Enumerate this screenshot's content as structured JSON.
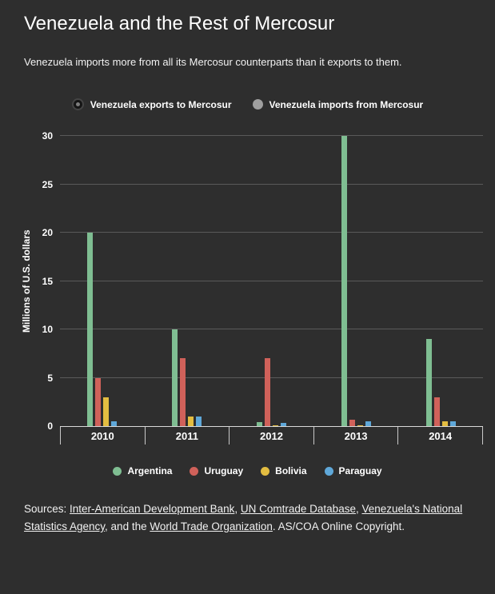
{
  "page": {
    "title": "Venezuela and the Rest of Mercosur",
    "subtitle": "Venezuela imports more from all its Mercosur counterparts than it exports to them."
  },
  "toggles": [
    {
      "id": "toggle-exports",
      "label": "Venezuela exports to Mercosur",
      "selected": true
    },
    {
      "id": "toggle-imports",
      "label": "Venezuela imports from Mercosur",
      "selected": false
    }
  ],
  "chart_data": {
    "type": "bar",
    "title": "Venezuela and the Rest of Mercosur",
    "xlabel": "",
    "ylabel": "Millions of U.S. dollars",
    "ylim": [
      0,
      30
    ],
    "yticks": [
      0,
      5,
      10,
      15,
      20,
      25,
      30
    ],
    "grid": true,
    "legend_position": "bottom",
    "categories": [
      "2010",
      "2011",
      "2012",
      "2013",
      "2014"
    ],
    "series": [
      {
        "name": "Argentina",
        "color": "#7fbe92",
        "values": [
          20,
          10,
          0.4,
          30,
          9
        ]
      },
      {
        "name": "Uruguay",
        "color": "#d0615a",
        "values": [
          5,
          7,
          7,
          0.7,
          3
        ]
      },
      {
        "name": "Bolivia",
        "color": "#e3bd41",
        "values": [
          3,
          1,
          0.1,
          0.1,
          0.5
        ]
      },
      {
        "name": "Paraguay",
        "color": "#5fa8d9",
        "values": [
          0.5,
          1,
          0.3,
          0.5,
          0.5
        ]
      }
    ]
  },
  "colors": {
    "background": "#2e2e2e",
    "gridline": "#5a5a5a",
    "axis_line": "#d9d9d9",
    "text": "#ffffff"
  },
  "footer": {
    "segments": [
      {
        "text": "Sources: ",
        "link": false
      },
      {
        "text": "Inter-American Development Bank",
        "link": true
      },
      {
        "text": ", ",
        "link": false
      },
      {
        "text": "UN Comtrade Database",
        "link": true
      },
      {
        "text": ", ",
        "link": false
      },
      {
        "text": "Venezuela's National Statistics Agency",
        "link": true
      },
      {
        "text": ", and the ",
        "link": false
      },
      {
        "text": "World Trade Organization",
        "link": true
      },
      {
        "text": ". AS/COA Online Copyright.",
        "link": false
      }
    ]
  }
}
